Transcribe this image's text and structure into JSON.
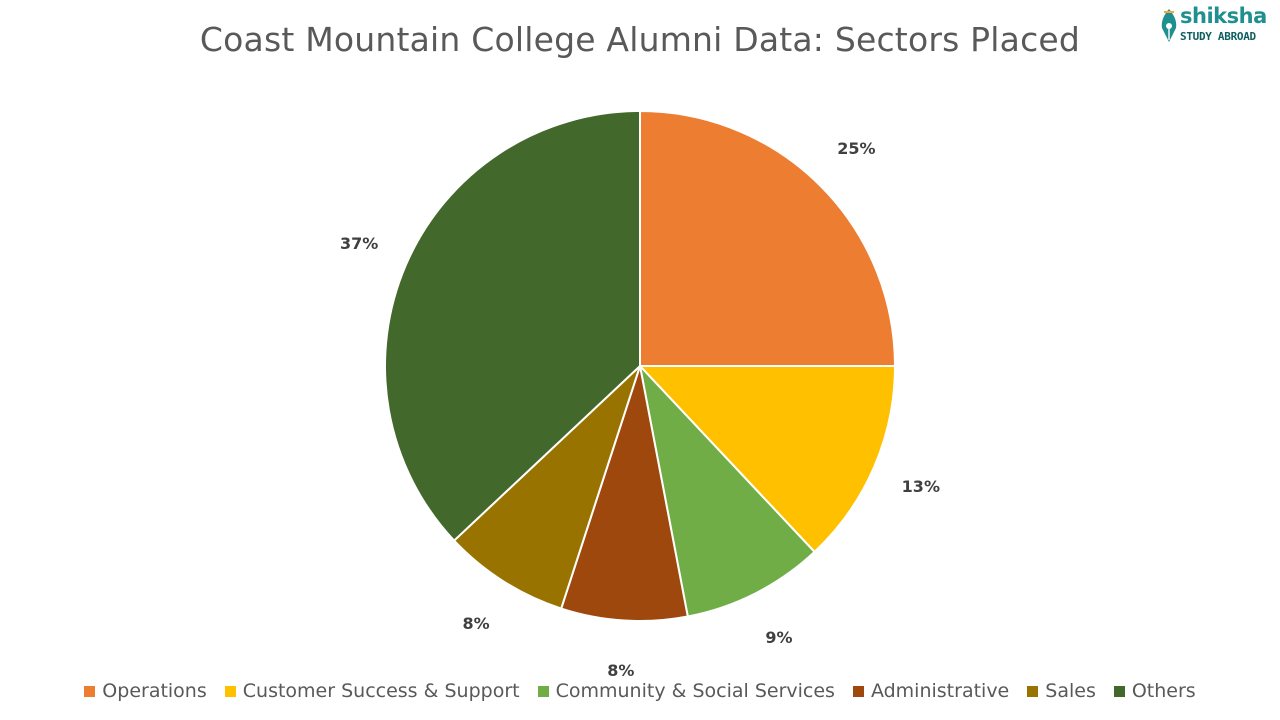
{
  "brand": {
    "name": "shiksha",
    "tagline": "STUDY ABROAD",
    "color": "#1f8f8f"
  },
  "chart_data": {
    "type": "pie",
    "title": "Coast Mountain College Alumni Data: Sectors Placed",
    "categories": [
      "Operations",
      "Customer Success & Support",
      "Community & Social Services",
      "Administrative",
      "Sales",
      "Others"
    ],
    "values": [
      25,
      13,
      9,
      8,
      8,
      37
    ],
    "labels": [
      "25%",
      "13%",
      "9%",
      "8%",
      "8%",
      "37%"
    ],
    "colors": [
      "#ED7D31",
      "#FFC000",
      "#70AD47",
      "#9E480E",
      "#997300",
      "#43682B"
    ],
    "unit": "%",
    "start_angle": "12 o'clock, clockwise",
    "legend_position": "bottom"
  }
}
